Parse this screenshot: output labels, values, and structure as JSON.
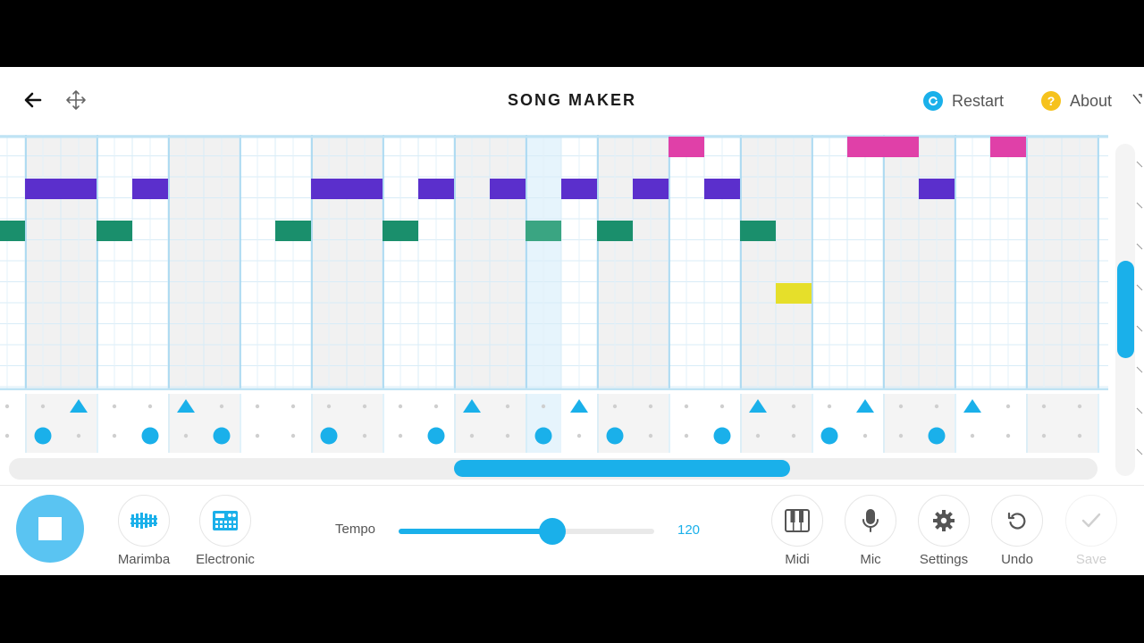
{
  "header": {
    "title": "SONG MAKER",
    "restart_label": "Restart",
    "about_label": "About",
    "about_glyph": "?",
    "accent": "#1ab0ea",
    "about_color": "#f6c21c"
  },
  "grid": {
    "columns": 31,
    "melody_rows": 14,
    "notes": [
      {
        "row": 0,
        "col": 18,
        "color": "#e040a8"
      },
      {
        "row": 0,
        "col": 23,
        "color": "#e040a8"
      },
      {
        "row": 0,
        "col": 24,
        "color": "#e040a8"
      },
      {
        "row": 0,
        "col": 27,
        "color": "#e040a8"
      },
      {
        "row": 1,
        "col": 0,
        "color": "#5b2fcc"
      },
      {
        "row": 1,
        "col": 1,
        "color": "#5b2fcc"
      },
      {
        "row": 1,
        "col": 3,
        "color": "#5b2fcc"
      },
      {
        "row": 1,
        "col": 8,
        "color": "#5b2fcc"
      },
      {
        "row": 1,
        "col": 9,
        "color": "#5b2fcc"
      },
      {
        "row": 1,
        "col": 11,
        "color": "#5b2fcc"
      },
      {
        "row": 1,
        "col": 13,
        "color": "#5b2fcc"
      },
      {
        "row": 1,
        "col": 15,
        "color": "#5b2fcc"
      },
      {
        "row": 1,
        "col": 17,
        "color": "#5b2fcc"
      },
      {
        "row": 1,
        "col": 19,
        "color": "#5b2fcc"
      },
      {
        "row": 1,
        "col": 25,
        "color": "#5b2fcc"
      },
      {
        "row": 2,
        "col": -1,
        "color": "#1a8f6c"
      },
      {
        "row": 2,
        "col": 2,
        "color": "#1a8f6c"
      },
      {
        "row": 2,
        "col": 7,
        "color": "#1a8f6c"
      },
      {
        "row": 2,
        "col": 10,
        "color": "#1a8f6c"
      },
      {
        "row": 2,
        "col": 14,
        "color": "#3aa582"
      },
      {
        "row": 2,
        "col": 16,
        "color": "#1a8f6c"
      },
      {
        "row": 2,
        "col": 20,
        "color": "#1a8f6c"
      },
      {
        "row": 5,
        "col": 21,
        "color": "#e6df2a"
      }
    ],
    "playhead_col": 14,
    "percussion": {
      "triangles": [
        2,
        5,
        13,
        16,
        21,
        24,
        27
      ],
      "circles": [
        1,
        4,
        6,
        9,
        12,
        15,
        17,
        20,
        23,
        26
      ]
    }
  },
  "footer": {
    "instrument_1": "Marimba",
    "instrument_2": "Electronic",
    "tempo_label": "Tempo",
    "tempo_value": "120",
    "tempo_fraction": 0.6,
    "midi_label": "Midi",
    "mic_label": "Mic",
    "settings_label": "Settings",
    "undo_label": "Undo",
    "save_label": "Save"
  }
}
